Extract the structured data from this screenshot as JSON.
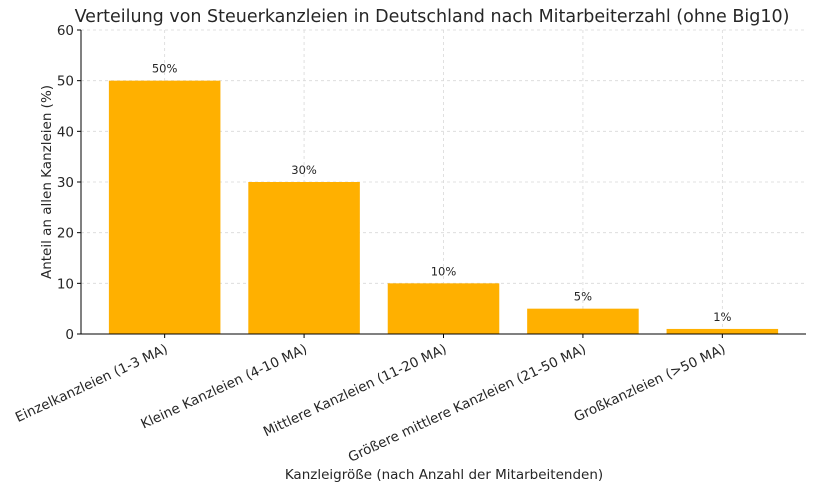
{
  "chart_data": {
    "type": "bar",
    "title": "Verteilung von Steuerkanzleien in Deutschland nach Mitarbeiterzahl (ohne Big10)",
    "xlabel": "Kanzleigröße (nach Anzahl der Mitarbeitenden)",
    "ylabel": "Anteil an allen Kanzleien (%)",
    "categories": [
      "Einzelkanzleien (1-3 MA)",
      "Kleine Kanzleien (4-10 MA)",
      "Mittlere Kanzleien (11-20 MA)",
      "Größere mittlere Kanzleien (21-50 MA)",
      "Großkanzleien (>50 MA)"
    ],
    "values": [
      50,
      30,
      10,
      5,
      1
    ],
    "data_labels": [
      "50%",
      "30%",
      "10%",
      "5%",
      "1%"
    ],
    "ylim": [
      0,
      60
    ],
    "yticks": [
      0,
      10,
      20,
      30,
      40,
      50,
      60
    ],
    "grid": true,
    "legend": "none",
    "bar_color": "#FFB000",
    "grid_color": "#d9d9d9",
    "axis_color": "#000000",
    "text_color": "#262626"
  }
}
